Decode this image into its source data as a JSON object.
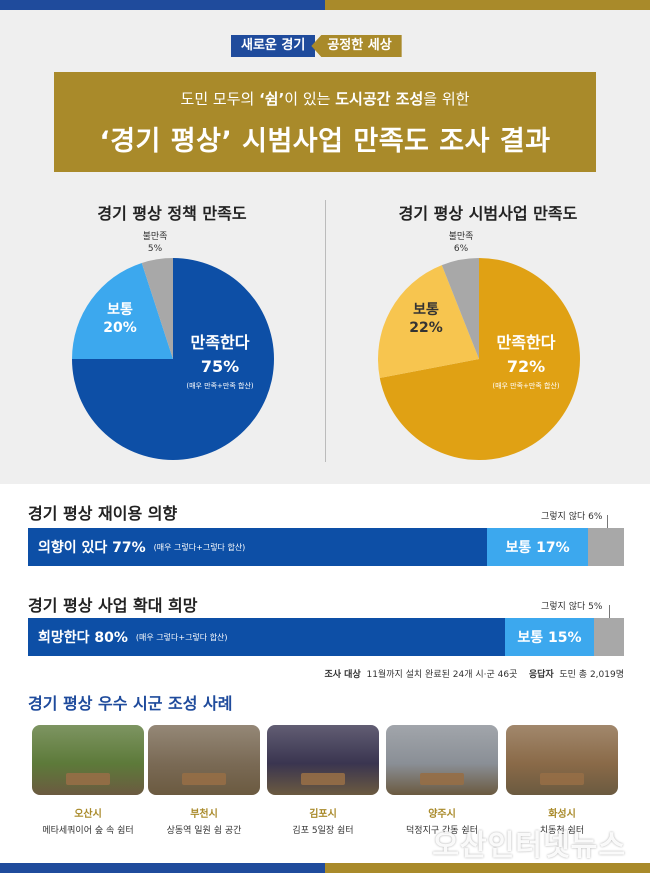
{
  "slogan": {
    "part1": "새로운 경기",
    "part2": "공정한 세상"
  },
  "banner": {
    "sub_pre": "도민 모두의 ",
    "sub_rest": "‘쉼’",
    "sub_mid": "이 있는 ",
    "sub_strong": "도시공간 조성",
    "sub_post": "을 위한",
    "main": "‘경기 평상’ 시범사업 만족도 조사 결과"
  },
  "colors": {
    "blue_dark": "#0d4fa6",
    "blue_light": "#3ca8ee",
    "gold_dark": "#e0a114",
    "gold_light": "#f7c54f",
    "gray": "#a8a8a8",
    "brand_gold": "#a98a2a",
    "brand_blue": "#1f4b9c"
  },
  "chart_data": [
    {
      "type": "pie",
      "title": "경기 평상 정책 만족도",
      "slices": [
        {
          "label": "만족한다",
          "value": 75,
          "value_text": "75%",
          "note": "(매우 만족+만족 합산)"
        },
        {
          "label": "보통",
          "value": 20,
          "value_text": "20%"
        },
        {
          "label": "불만족",
          "value": 5,
          "value_text": "5%"
        }
      ]
    },
    {
      "type": "pie",
      "title": "경기 평상 시범사업 만족도",
      "slices": [
        {
          "label": "만족한다",
          "value": 72,
          "value_text": "72%",
          "note": "(매우 만족+만족 합산)"
        },
        {
          "label": "보통",
          "value": 22,
          "value_text": "22%"
        },
        {
          "label": "불만족",
          "value": 6,
          "value_text": "6%"
        }
      ]
    },
    {
      "type": "bar",
      "title": "경기 평상 재이용 의향",
      "segments": [
        {
          "label": "의향이 있다 77%",
          "value": 77,
          "note": "(매우 그렇다+그렇다 합산)"
        },
        {
          "label": "보통 17%",
          "value": 17
        },
        {
          "label": "그렇지 않다 6%",
          "value": 6
        }
      ]
    },
    {
      "type": "bar",
      "title": "경기 평상 사업 확대 희망",
      "segments": [
        {
          "label": "희망한다 80%",
          "value": 80,
          "note": "(매우 그렇다+그렇다 합산)"
        },
        {
          "label": "보통 15%",
          "value": 15
        },
        {
          "label": "그렇지 않다 5%",
          "value": 5
        }
      ]
    }
  ],
  "survey": {
    "target_label": "조사 대상",
    "target_text": "11월까지 설치 완료된 24개 시·군 46곳",
    "resp_label": "응답자",
    "resp_text": "도민 총 2,019명"
  },
  "cases": {
    "title": "경기 평상 우수 시군 조성 사례",
    "items": [
      {
        "city": "오산시",
        "place": "메타세쿼이어 숲 속 쉼터",
        "tone": "#5d7a3a"
      },
      {
        "city": "부천시",
        "place": "상동역 일원 쉼 공간",
        "tone": "#7a6a55"
      },
      {
        "city": "김포시",
        "place": "김포 5일장 쉼터",
        "tone": "#3a3550"
      },
      {
        "city": "양주시",
        "place": "덕정지구 간동 쉼터",
        "tone": "#8a8f96"
      },
      {
        "city": "화성시",
        "place": "치동천 쉼터",
        "tone": "#8a6a48"
      }
    ]
  },
  "watermark": "오산인터넷뉴스"
}
